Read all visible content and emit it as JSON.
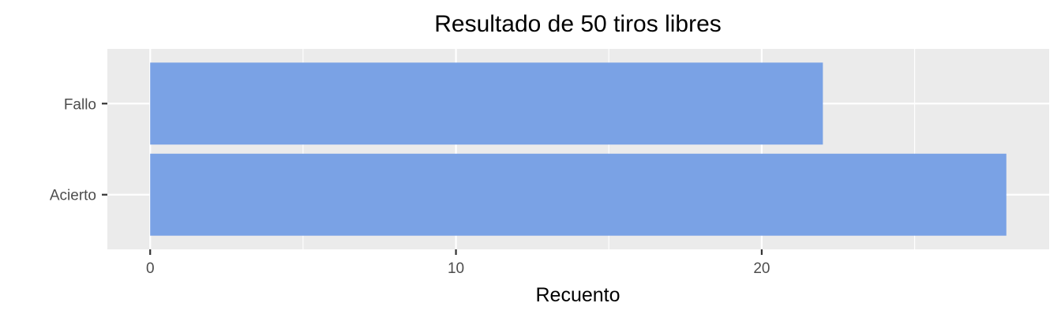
{
  "chart_data": {
    "type": "bar",
    "orientation": "horizontal",
    "title": "Resultado de 50 tiros libres",
    "xlabel": "Recuento",
    "ylabel": "",
    "categories": [
      "Acierto",
      "Fallo"
    ],
    "values": [
      28,
      22
    ],
    "xlim": [
      -1.4,
      29.4
    ],
    "x_ticks": [
      0,
      10,
      20
    ],
    "grid": true,
    "legend": "none",
    "colors": {
      "bar": "#7aa2e5",
      "panel": "#ebebeb",
      "grid": "#ffffff",
      "tick_text": "#4d4d4d",
      "tick_mark": "#333333"
    }
  }
}
